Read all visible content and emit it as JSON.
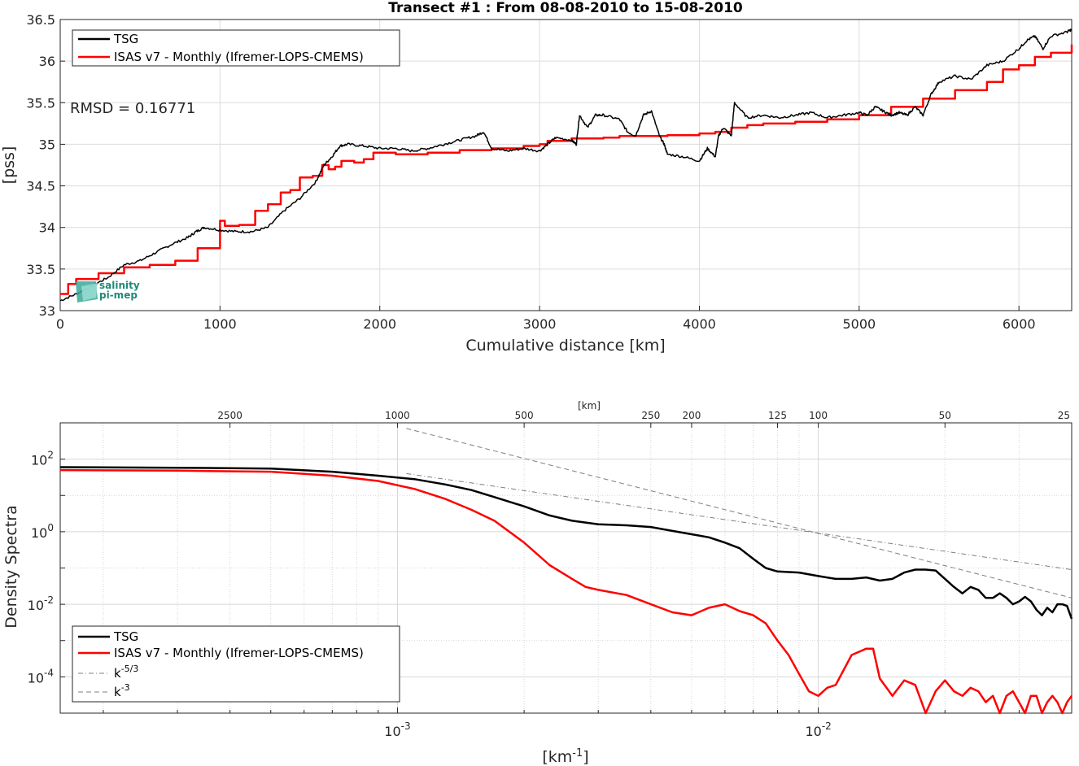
{
  "colors": {
    "tsg": "#000000",
    "isas": "#ff0000",
    "ref": "#7f7f7f",
    "grid": "#dcdcdc",
    "logo": "#1f8a7a"
  },
  "logo": {
    "line1": "salinity",
    "line2": "pi-mep"
  },
  "chart_data": [
    {
      "type": "line",
      "title": "Transect #1 : From 08-08-2010 to 15-08-2010",
      "xlabel": "Cumulative distance [km]",
      "ylabel": "[pss]",
      "xlim": [
        0,
        6330
      ],
      "ylim": [
        33,
        36.5
      ],
      "xticks": [
        0,
        1000,
        2000,
        3000,
        4000,
        5000,
        6000
      ],
      "xtick_labels": [
        "0",
        "1000",
        "2000",
        "3000",
        "4000",
        "5000",
        "6000"
      ],
      "yticks": [
        33,
        33.5,
        34,
        34.5,
        35,
        35.5,
        36,
        36.5
      ],
      "ytick_labels": [
        "33",
        "33.5",
        "34",
        "34.5",
        "35",
        "35.5",
        "36",
        "36.5"
      ],
      "grid": true,
      "legend_position": "top-left",
      "annotation": "RMSD = 0.16771",
      "series": [
        {
          "name": "TSG",
          "color": "#000000",
          "x": [
            0,
            100,
            200,
            300,
            400,
            500,
            600,
            700,
            800,
            850,
            900,
            1000,
            1100,
            1200,
            1300,
            1400,
            1500,
            1600,
            1650,
            1700,
            1750,
            1800,
            1900,
            2000,
            2100,
            2200,
            2300,
            2400,
            2500,
            2600,
            2650,
            2700,
            2800,
            2900,
            3000,
            3050,
            3100,
            3200,
            3230,
            3250,
            3300,
            3350,
            3400,
            3500,
            3550,
            3600,
            3650,
            3700,
            3750,
            3780,
            3800,
            3900,
            4000,
            4050,
            4100,
            4120,
            4150,
            4200,
            4220,
            4300,
            4400,
            4500,
            4600,
            4700,
            4800,
            4900,
            5000,
            5050,
            5100,
            5150,
            5200,
            5250,
            5300,
            5350,
            5400,
            5450,
            5500,
            5600,
            5700,
            5800,
            5900,
            6000,
            6050,
            6100,
            6150,
            6200,
            6300,
            6330
          ],
          "y": [
            33.12,
            33.2,
            33.3,
            33.4,
            33.55,
            33.6,
            33.7,
            33.8,
            33.88,
            33.95,
            34.0,
            33.97,
            33.95,
            33.95,
            34.0,
            34.2,
            34.35,
            34.55,
            34.75,
            34.85,
            34.98,
            35.0,
            34.98,
            34.95,
            34.95,
            34.92,
            34.95,
            35.0,
            35.05,
            35.1,
            35.15,
            34.95,
            34.92,
            34.95,
            34.92,
            35.0,
            35.08,
            35.05,
            35.0,
            35.35,
            35.2,
            35.35,
            35.35,
            35.3,
            35.15,
            35.1,
            35.35,
            35.4,
            35.1,
            35.0,
            34.88,
            34.85,
            34.8,
            34.95,
            34.85,
            35.1,
            35.2,
            35.1,
            35.5,
            35.32,
            35.35,
            35.32,
            35.35,
            35.38,
            35.32,
            35.35,
            35.38,
            35.35,
            35.45,
            35.4,
            35.35,
            35.38,
            35.35,
            35.45,
            35.35,
            35.6,
            35.75,
            35.82,
            35.78,
            35.95,
            36.0,
            36.15,
            36.25,
            36.3,
            36.15,
            36.3,
            36.35,
            36.38
          ]
        },
        {
          "name": "ISAS v7 - Monthly (Ifremer-LOPS-CMEMS)",
          "color": "#ff0000",
          "x": [
            0,
            50,
            100,
            240,
            400,
            560,
            720,
            860,
            1000,
            1030,
            1120,
            1220,
            1300,
            1380,
            1440,
            1500,
            1580,
            1640,
            1680,
            1720,
            1760,
            1840,
            1900,
            1960,
            2100,
            2300,
            2500,
            2700,
            2900,
            3000,
            3050,
            3200,
            3400,
            3500,
            3600,
            3800,
            4000,
            4100,
            4200,
            4300,
            4400,
            4600,
            4800,
            5000,
            5200,
            5400,
            5600,
            5800,
            5900,
            6000,
            6100,
            6200,
            6330
          ],
          "y": [
            33.2,
            33.32,
            33.38,
            33.45,
            33.52,
            33.55,
            33.6,
            33.75,
            34.08,
            34.02,
            34.03,
            34.2,
            34.28,
            34.42,
            34.45,
            34.6,
            34.62,
            34.75,
            34.7,
            34.73,
            34.8,
            34.78,
            34.82,
            34.9,
            34.88,
            34.9,
            34.93,
            34.95,
            34.98,
            35.0,
            35.04,
            35.07,
            35.08,
            35.1,
            35.1,
            35.11,
            35.13,
            35.15,
            35.2,
            35.23,
            35.25,
            35.27,
            35.3,
            35.35,
            35.45,
            35.55,
            35.65,
            35.75,
            35.9,
            35.95,
            36.05,
            36.1,
            36.2
          ]
        }
      ]
    },
    {
      "type": "line",
      "title": "",
      "xlabel": "[km-1]",
      "ylabel": "Density Spectra",
      "xscale": "log",
      "yscale": "log",
      "xlim": [
        0.000158,
        0.04
      ],
      "ylim": [
        1e-05,
        1000
      ],
      "xtick_labels": [
        "10-3",
        "10-2"
      ],
      "ytick_labels": [
        "10-4",
        "10-2",
        "100",
        "102"
      ],
      "top_axis_label": "[km]",
      "top_ticks": [
        "2500",
        "1000",
        "500",
        "250",
        "200",
        "125",
        "100",
        "50",
        "25"
      ],
      "grid": true,
      "legend_position": "bottom-left",
      "series": [
        {
          "name": "TSG",
          "color": "#000000",
          "x": [
            0.000158,
            0.0003,
            0.0005,
            0.0007,
            0.0009,
            0.0011,
            0.0013,
            0.0015,
            0.0017,
            0.002,
            0.0023,
            0.0026,
            0.003,
            0.0035,
            0.004,
            0.0045,
            0.005,
            0.0055,
            0.006,
            0.0065,
            0.007,
            0.0075,
            0.008,
            0.009,
            0.01,
            0.011,
            0.012,
            0.013,
            0.014,
            0.015,
            0.016,
            0.017,
            0.018,
            0.019,
            0.02,
            0.021,
            0.022,
            0.023,
            0.024,
            0.025,
            0.026,
            0.027,
            0.028,
            0.029,
            0.03,
            0.031,
            0.032,
            0.033,
            0.034,
            0.035,
            0.036,
            0.037,
            0.038,
            0.039,
            0.04
          ],
          "y": [
            60,
            58,
            55,
            45,
            35,
            28,
            20,
            14,
            9,
            5,
            2.8,
            2,
            1.6,
            1.5,
            1.35,
            1.05,
            0.85,
            0.7,
            0.5,
            0.35,
            0.18,
            0.1,
            0.08,
            0.075,
            0.06,
            0.05,
            0.05,
            0.055,
            0.045,
            0.05,
            0.075,
            0.09,
            0.09,
            0.085,
            0.05,
            0.03,
            0.02,
            0.03,
            0.025,
            0.015,
            0.015,
            0.02,
            0.015,
            0.01,
            0.012,
            0.016,
            0.012,
            0.007,
            0.005,
            0.008,
            0.006,
            0.01,
            0.01,
            0.009,
            0.004
          ]
        },
        {
          "name": "ISAS v7 - Monthly (Ifremer-LOPS-CMEMS)",
          "color": "#ff0000",
          "x": [
            0.000158,
            0.0003,
            0.0005,
            0.0007,
            0.0009,
            0.0011,
            0.0013,
            0.0015,
            0.0017,
            0.002,
            0.0023,
            0.0026,
            0.0028,
            0.003,
            0.0035,
            0.004,
            0.0045,
            0.005,
            0.0055,
            0.006,
            0.0065,
            0.007,
            0.0075,
            0.008,
            0.0085,
            0.009,
            0.0095,
            0.01,
            0.0105,
            0.011,
            0.012,
            0.013,
            0.0135,
            0.014,
            0.015,
            0.016,
            0.017,
            0.018,
            0.019,
            0.02,
            0.021,
            0.022,
            0.023,
            0.024,
            0.025,
            0.026,
            0.027,
            0.028,
            0.029,
            0.03,
            0.031,
            0.032,
            0.033,
            0.034,
            0.035,
            0.036,
            0.037,
            0.038,
            0.039,
            0.04
          ],
          "y": [
            50,
            48,
            45,
            35,
            25,
            15,
            8,
            4,
            2,
            0.5,
            0.12,
            0.05,
            0.03,
            0.025,
            0.018,
            0.01,
            0.006,
            0.005,
            0.008,
            0.01,
            0.0065,
            0.005,
            0.003,
            0.001,
            0.0004,
            0.00012,
            4e-05,
            3e-05,
            5e-05,
            6e-05,
            0.0004,
            0.0006,
            0.0006,
            9e-05,
            3e-05,
            8e-05,
            6e-05,
            1e-05,
            4e-05,
            8e-05,
            4e-05,
            3e-05,
            5e-05,
            4e-05,
            2e-05,
            3e-05,
            1e-05,
            3e-05,
            4e-05,
            2e-05,
            1e-05,
            3e-05,
            3e-05,
            1e-05,
            2e-05,
            3e-05,
            2e-05,
            1e-05,
            2e-05,
            3e-05
          ]
        },
        {
          "name": "k-5/3",
          "color": "#7f7f7f",
          "dash": "dashdot",
          "x": [
            0.00105,
            0.04
          ],
          "y": [
            40,
            0.09
          ]
        },
        {
          "name": "k-3",
          "color": "#7f7f7f",
          "dash": "dash",
          "x": [
            0.00105,
            0.04
          ],
          "y": [
            700,
            0.015
          ]
        }
      ]
    }
  ]
}
